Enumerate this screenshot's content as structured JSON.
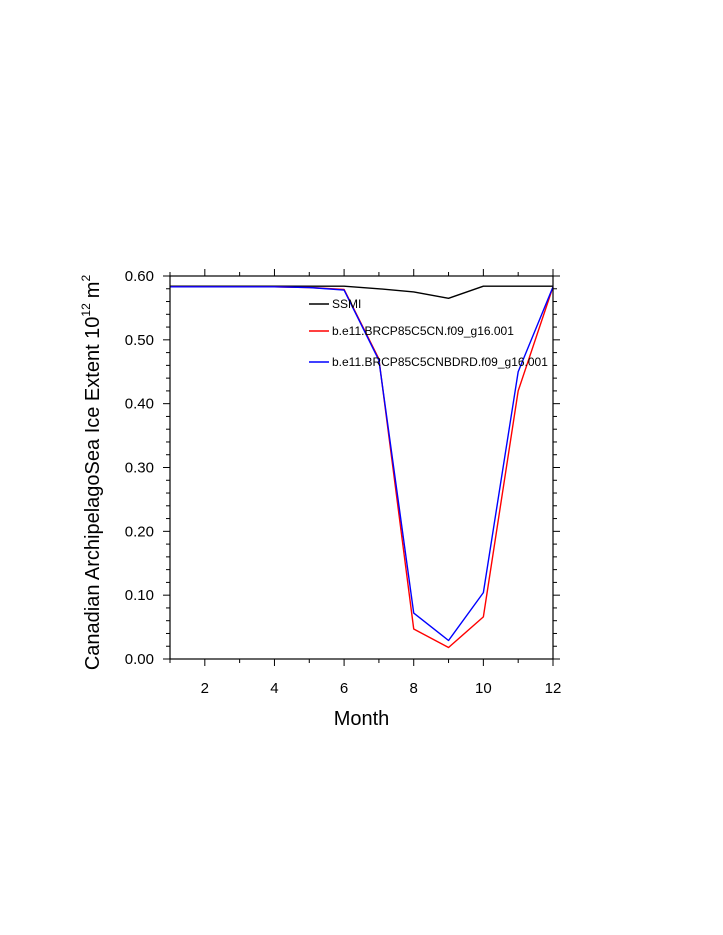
{
  "chart_data": {
    "type": "line",
    "title": "",
    "xlabel": "Month",
    "ylabel": "Canadian ArchipelagoSea Ice Extent 10",
    "ylabel_exp": "12",
    "ylabel_unit": "m",
    "ylabel_unit_exp": "2",
    "xlim": [
      1,
      12
    ],
    "ylim": [
      0,
      0.6
    ],
    "x_ticks": [
      2,
      4,
      6,
      8,
      10,
      12
    ],
    "x_tick_labels": [
      "2",
      "4",
      "6",
      "8",
      "10",
      "12"
    ],
    "y_ticks": [
      0,
      0.1,
      0.2,
      0.3,
      0.4,
      0.5,
      0.6
    ],
    "y_tick_labels": [
      "0.00",
      "0.10",
      "0.20",
      "0.30",
      "0.40",
      "0.50",
      "0.60"
    ],
    "legend_position": "top-right",
    "x": [
      1,
      2,
      3,
      4,
      5,
      6,
      7,
      8,
      9,
      10,
      11,
      12
    ],
    "series": [
      {
        "name": "SSMI",
        "color": "#000000",
        "values": [
          0.584,
          0.584,
          0.584,
          0.584,
          0.584,
          0.584,
          0.58,
          0.575,
          0.565,
          0.584,
          0.584,
          0.584
        ]
      },
      {
        "name": "b.e11.BRCP85C5CN.f09_g16.001",
        "color": "#ff0000",
        "values": [
          0.583,
          0.583,
          0.583,
          0.583,
          0.582,
          0.579,
          0.47,
          0.047,
          0.018,
          0.066,
          0.42,
          0.583
        ]
      },
      {
        "name": "b.e11.BRCP85C5CNBDRD.f09_g16.001",
        "color": "#0000ff",
        "values": [
          0.583,
          0.583,
          0.583,
          0.583,
          0.582,
          0.578,
          0.468,
          0.072,
          0.029,
          0.104,
          0.45,
          0.583
        ]
      }
    ]
  }
}
